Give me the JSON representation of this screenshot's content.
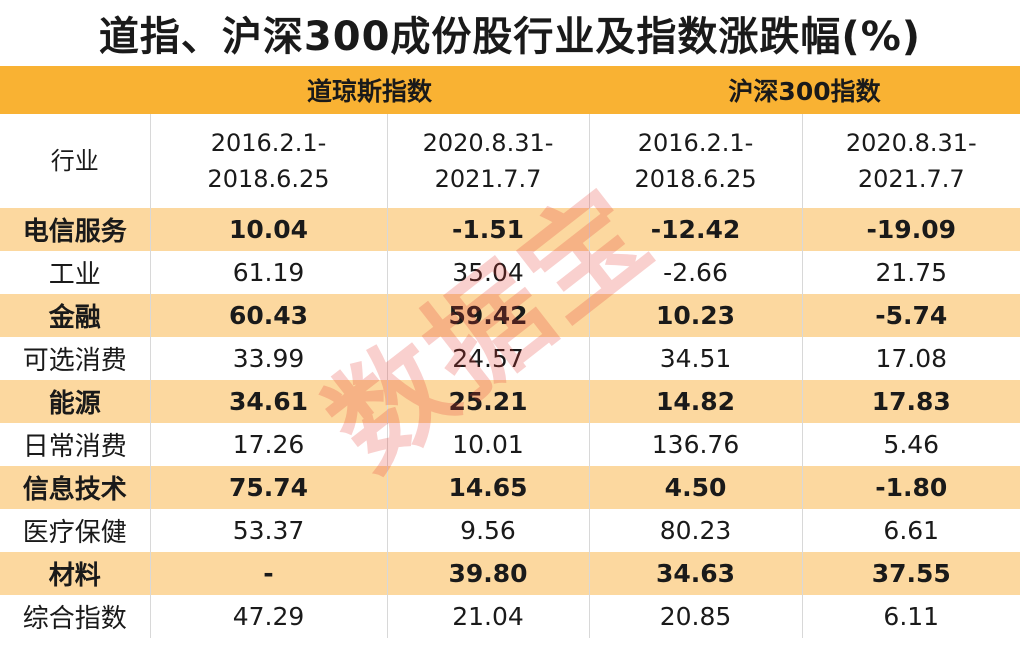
{
  "chart_data": {
    "type": "table",
    "title": "道指、沪深300成份股行业及指数涨跌幅(%)",
    "groups": [
      "道琼斯指数",
      "沪深300指数"
    ],
    "row_header_label": "行业",
    "period_labels": [
      {
        "start": "2016.2.1-",
        "end": "2018.6.25"
      },
      {
        "start": "2020.8.31-",
        "end": "2021.7.7"
      },
      {
        "start": "2016.2.1-",
        "end": "2018.6.25"
      },
      {
        "start": "2020.8.31-",
        "end": "2021.7.7"
      }
    ],
    "rows": [
      {
        "industry": "电信服务",
        "values": [
          "10.04",
          "-1.51",
          "-12.42",
          "-19.09"
        ]
      },
      {
        "industry": "工业",
        "values": [
          "61.19",
          "35.04",
          "-2.66",
          "21.75"
        ]
      },
      {
        "industry": "金融",
        "values": [
          "60.43",
          "59.42",
          "10.23",
          "-5.74"
        ]
      },
      {
        "industry": "可选消费",
        "values": [
          "33.99",
          "24.57",
          "34.51",
          "17.08"
        ]
      },
      {
        "industry": "能源",
        "values": [
          "34.61",
          "25.21",
          "14.82",
          "17.83"
        ]
      },
      {
        "industry": "日常消费",
        "values": [
          "17.26",
          "10.01",
          "136.76",
          "5.46"
        ]
      },
      {
        "industry": "信息技术",
        "values": [
          "75.74",
          "14.65",
          "4.50",
          "-1.80"
        ]
      },
      {
        "industry": "医疗保健",
        "values": [
          "53.37",
          "9.56",
          "80.23",
          "6.61"
        ]
      },
      {
        "industry": "材料",
        "values": [
          "-",
          "39.80",
          "34.63",
          "37.55"
        ]
      },
      {
        "industry": "综合指数",
        "values": [
          "47.29",
          "21.04",
          "20.85",
          "6.11"
        ]
      }
    ]
  },
  "watermark": "数据宝",
  "colors": {
    "header_band": "#f9b233",
    "stripe": "#fcd89f",
    "watermark": "#e63c32"
  }
}
